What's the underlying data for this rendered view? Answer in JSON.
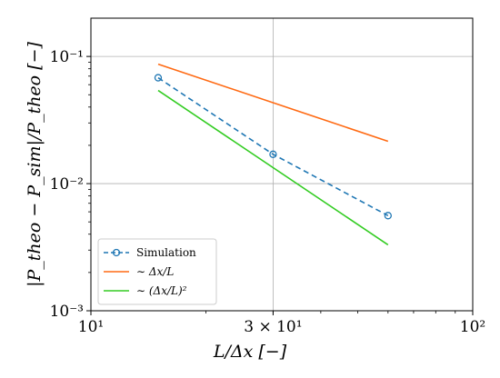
{
  "chart_data": {
    "type": "line",
    "xlabel": "L/Δx [−]",
    "ylabel": "|P_theo − P_sim|/P_theo [−]",
    "xscale": "log",
    "yscale": "log",
    "xlim": [
      10,
      100
    ],
    "ylim": [
      0.001,
      0.2
    ],
    "grid": true,
    "x_ticks": [
      {
        "value": 10,
        "label": "10¹"
      },
      {
        "value": 30,
        "label": "3 × 10¹"
      },
      {
        "value": 100,
        "label": "10²"
      }
    ],
    "y_ticks": [
      {
        "value": 0.001,
        "label": "10⁻³"
      },
      {
        "value": 0.01,
        "label": "10⁻²"
      },
      {
        "value": 0.1,
        "label": "10⁻¹"
      }
    ],
    "legend_position": "lower-left",
    "series": [
      {
        "name": "Simulation",
        "color": "#1f77b4",
        "style": "dashed",
        "marker": "circle",
        "x": [
          15,
          30,
          60
        ],
        "y": [
          0.068,
          0.017,
          0.0056
        ]
      },
      {
        "name": "∼ Δx/L",
        "color": "#ff6a13",
        "style": "solid",
        "marker": "none",
        "x": [
          15,
          60
        ],
        "y": [
          0.087,
          0.0215
        ]
      },
      {
        "name": "∼ (Δx/L)²",
        "color": "#33cc22",
        "style": "solid",
        "marker": "none",
        "x": [
          15,
          60
        ],
        "y": [
          0.054,
          0.0033
        ]
      }
    ]
  }
}
